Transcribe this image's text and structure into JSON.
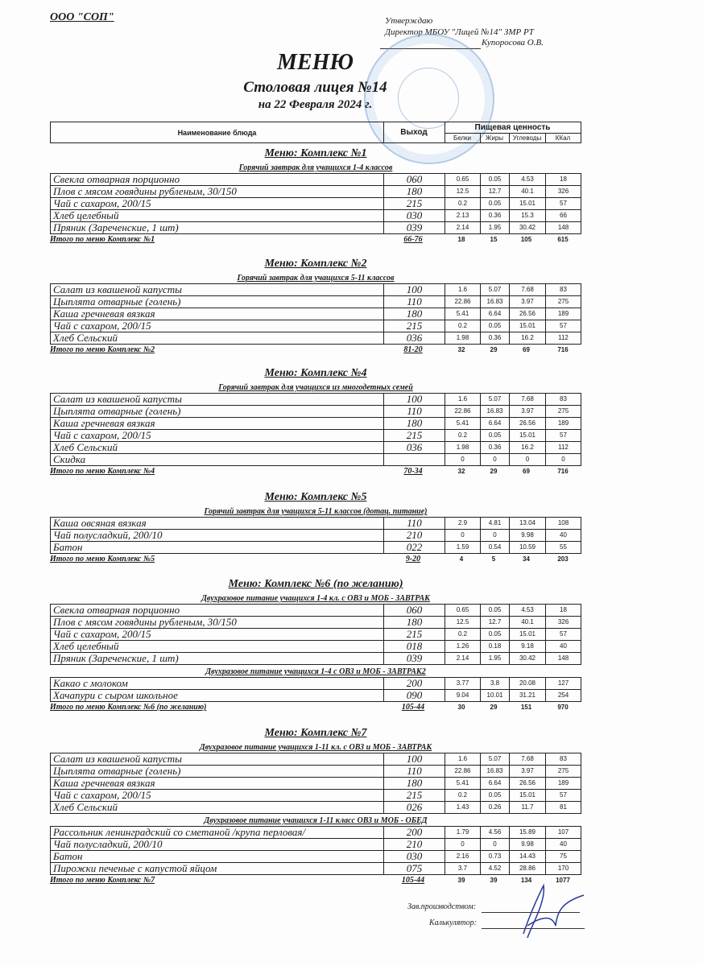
{
  "header": {
    "org": "ООО \"СОП\"",
    "approve_line1": "Утверждаю",
    "approve_line2": "Директор МБОУ \"Лицей №14\" ЗМР РТ",
    "approve_name": "Купоросова О.В.",
    "title": "МЕНЮ",
    "subtitle": "Столовая лицея №14",
    "date": "на 22 Февраля 2024 г."
  },
  "table_header": {
    "name": "Наименование блюда",
    "output": "Выход",
    "nutrition": "Пищевая ценность",
    "cols": [
      "Белки",
      "Жиры",
      "Углеводы",
      "ККал"
    ]
  },
  "menus": [
    {
      "title": "Меню: Комплекс №1",
      "groups": [
        {
          "subtitle": "Горячий завтрак для учащихся 1-4 классов",
          "rows": [
            [
              "Свекла отварная порционно",
              "060",
              "0.65",
              "0.05",
              "4.53",
              "18"
            ],
            [
              "Плов с мясом говядины рубленым, 30/150",
              "180",
              "12.5",
              "12.7",
              "40.1",
              "326"
            ],
            [
              "Чай с сахаром, 200/15",
              "215",
              "0.2",
              "0.05",
              "15.01",
              "57"
            ],
            [
              "Хлеб целебный",
              "030",
              "2.13",
              "0.36",
              "15.3",
              "66"
            ],
            [
              "Пряник (Зареченские, 1 шт)",
              "039",
              "2.14",
              "1.95",
              "30.42",
              "148"
            ]
          ]
        }
      ],
      "total": [
        "Итого по меню Комплекс №1",
        "66-76",
        "18",
        "15",
        "105",
        "615"
      ]
    },
    {
      "title": "Меню: Комплекс №2",
      "groups": [
        {
          "subtitle": "Горячий завтрак для учащихся 5-11 классов",
          "rows": [
            [
              "Салат из квашеной капусты",
              "100",
              "1.6",
              "5.07",
              "7.68",
              "83"
            ],
            [
              "Цыплята отварные (голень)",
              "110",
              "22.86",
              "16.83",
              "3.97",
              "275"
            ],
            [
              "Каша гречневая вязкая",
              "180",
              "5.41",
              "6.64",
              "26.56",
              "189"
            ],
            [
              "Чай с сахаром, 200/15",
              "215",
              "0.2",
              "0.05",
              "15.01",
              "57"
            ],
            [
              "Хлеб Сельский",
              "036",
              "1.98",
              "0.36",
              "16.2",
              "112"
            ]
          ]
        }
      ],
      "total": [
        "Итого по меню Комплекс №2",
        "81-20",
        "32",
        "29",
        "69",
        "716"
      ]
    },
    {
      "title": "Меню: Комплекс №4",
      "groups": [
        {
          "subtitle": "Горячий завтрак для учащихся из многодетных семей",
          "rows": [
            [
              "Салат из квашеной капусты",
              "100",
              "1.6",
              "5.07",
              "7.68",
              "83"
            ],
            [
              "Цыплята отварные (голень)",
              "110",
              "22.86",
              "16.83",
              "3.97",
              "275"
            ],
            [
              "Каша гречневая вязкая",
              "180",
              "5.41",
              "6.64",
              "26.56",
              "189"
            ],
            [
              "Чай с сахаром, 200/15",
              "215",
              "0.2",
              "0.05",
              "15.01",
              "57"
            ],
            [
              "Хлеб Сельский",
              "036",
              "1.98",
              "0.36",
              "16.2",
              "112"
            ],
            [
              "Скидка",
              "",
              "0",
              "0",
              "0",
              "0"
            ]
          ]
        }
      ],
      "total": [
        "Итого по меню Комплекс №4",
        "70-34",
        "32",
        "29",
        "69",
        "716"
      ]
    },
    {
      "title": "Меню: Комплекс №5",
      "groups": [
        {
          "subtitle": "Горячий завтрак для учащихся 5-11 классов (дотац. питание)",
          "rows": [
            [
              "Каша овсяная вязкая",
              "110",
              "2.9",
              "4.81",
              "13.04",
              "108"
            ],
            [
              "Чай полусладкий, 200/10",
              "210",
              "0",
              "0",
              "9.98",
              "40"
            ],
            [
              "Батон",
              "022",
              "1.59",
              "0.54",
              "10.59",
              "55"
            ]
          ]
        }
      ],
      "total": [
        "Итого по меню Комплекс №5",
        "9-20",
        "4",
        "5",
        "34",
        "203"
      ]
    },
    {
      "title": "Меню: Комплекс №6 (по желанию)",
      "groups": [
        {
          "subtitle": "Двухразовое питание учащихся 1-4 кл. с ОВЗ и МОБ - ЗАВТРАК",
          "rows": [
            [
              "Свекла отварная порционно",
              "060",
              "0.65",
              "0.05",
              "4.53",
              "18"
            ],
            [
              "Плов с мясом говядины рубленым, 30/150",
              "180",
              "12.5",
              "12.7",
              "40.1",
              "326"
            ],
            [
              "Чай с сахаром, 200/15",
              "215",
              "0.2",
              "0.05",
              "15.01",
              "57"
            ],
            [
              "Хлеб целебный",
              "018",
              "1.26",
              "0.18",
              "9.18",
              "40"
            ],
            [
              "Пряник (Зареченские, 1 шт)",
              "039",
              "2.14",
              "1.95",
              "30.42",
              "148"
            ]
          ]
        },
        {
          "subtitle": "Двухразовое питание учащихся 1-4 с ОВЗ и МОБ - ЗАВТРАК2",
          "rows": [
            [
              "Какао с  молоком",
              "200",
              "3.77",
              "3.8",
              "20.08",
              "127"
            ],
            [
              "Хачапури с сыром школьное",
              "090",
              "9.04",
              "10.01",
              "31.21",
              "254"
            ]
          ]
        }
      ],
      "total": [
        "Итого по меню Комплекс №6 (по желанию)",
        "105-44",
        "30",
        "29",
        "151",
        "970"
      ]
    },
    {
      "title": "Меню: Комплекс №7",
      "groups": [
        {
          "subtitle": "Двухразовое питание учащихся 1-11 кл. с  ОВЗ и МОБ - ЗАВТРАК",
          "rows": [
            [
              "Салат из квашеной капусты",
              "100",
              "1.6",
              "5.07",
              "7.68",
              "83"
            ],
            [
              "Цыплята отварные (голень)",
              "110",
              "22.86",
              "16.83",
              "3.97",
              "275"
            ],
            [
              "Каша гречневая вязкая",
              "180",
              "5.41",
              "6.64",
              "26.56",
              "189"
            ],
            [
              "Чай с сахаром, 200/15",
              "215",
              "0.2",
              "0.05",
              "15.01",
              "57"
            ],
            [
              "Хлеб Сельский",
              "026",
              "1.43",
              "0.26",
              "11.7",
              "81"
            ]
          ]
        },
        {
          "subtitle": "Двухразовое питание учащихся 1-11 класс ОВЗ и МОБ - ОБЕД",
          "rows": [
            [
              "Рассольник ленинградский со сметаной /крупа перловая/",
              "200",
              "1.79",
              "4.56",
              "15.89",
              "107"
            ],
            [
              "Чай полусладкий, 200/10",
              "210",
              "0",
              "0",
              "9.98",
              "40"
            ],
            [
              "Батон",
              "030",
              "2.16",
              "0.73",
              "14.43",
              "75"
            ],
            [
              "Пирожки печеные с капустой яйцом",
              "075",
              "3.7",
              "4.52",
              "28.86",
              "170"
            ]
          ]
        }
      ],
      "total": [
        "Итого по меню Комплекс №7",
        "105-44",
        "39",
        "39",
        "134",
        "1077"
      ]
    }
  ],
  "footer": {
    "production": "Зав.производством:",
    "calculator": "Калькулятор:"
  },
  "colors": {
    "stamp": "#5a8cc8",
    "ink": "#1a1a1a"
  }
}
